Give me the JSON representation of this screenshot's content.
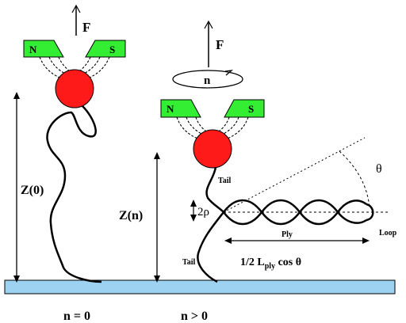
{
  "labels": {
    "force_left": "F",
    "force_right": "F",
    "rotation": "n",
    "north_left": "N",
    "south_left": "S",
    "north_right": "N",
    "south_right": "S",
    "z0": "Z(0)",
    "zn": "Z(n)",
    "tail_top": "Tail",
    "tail_bottom": "Tail",
    "two_rho": "2ρ",
    "ply": "Ply",
    "loop": "Loop",
    "theta": "θ",
    "length_prefix": "1/2 L",
    "length_sub": "ply",
    "length_suffix": " cos θ",
    "n_zero": "n = 0",
    "n_positive": "n > 0"
  },
  "colors": {
    "bead": "#ff1a1a",
    "magnet": "#33ee33",
    "surface": "#9dd3f0",
    "ink": "#000000"
  }
}
